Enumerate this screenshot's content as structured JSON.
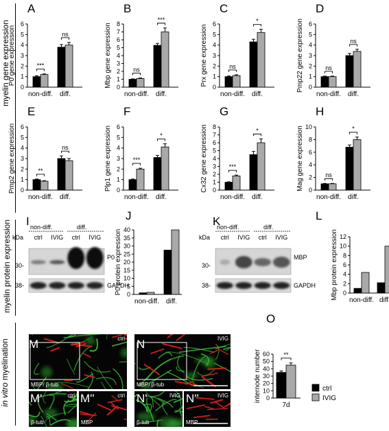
{
  "section_labels": {
    "myelin_gene": "myelin gene expression",
    "myelin_protein": "myelin protein expression",
    "in_vitro_prefix": "in vitro",
    "in_vitro_suffix": " myelination"
  },
  "colors": {
    "ctrl": "#000000",
    "ivig": "#a9a9a9"
  },
  "chart_data": [
    {
      "panel": "A",
      "type": "bar",
      "ylabel": "P0 gene expression",
      "categories": [
        "non-diff.",
        "diff."
      ],
      "ylim": [
        0,
        6
      ],
      "yticks": [
        0,
        1,
        2,
        3,
        4,
        5,
        6
      ],
      "series": [
        {
          "name": "ctrl",
          "values": [
            1.0,
            3.8
          ],
          "err": [
            0.08,
            0.25
          ]
        },
        {
          "name": "IVIG",
          "values": [
            1.2,
            4.0
          ],
          "err": [
            0.06,
            0.25
          ]
        }
      ],
      "sig": [
        "***",
        "ns"
      ]
    },
    {
      "panel": "B",
      "type": "bar",
      "ylabel": "Mbp gene expression",
      "categories": [
        "non-diff.",
        "diff."
      ],
      "ylim": [
        0,
        8
      ],
      "yticks": [
        0,
        1,
        2,
        3,
        4,
        5,
        6,
        7,
        8
      ],
      "series": [
        {
          "name": "ctrl",
          "values": [
            1.0,
            5.3
          ],
          "err": [
            0.05,
            0.25
          ]
        },
        {
          "name": "IVIG",
          "values": [
            1.1,
            7.0
          ],
          "err": [
            0.07,
            0.5
          ]
        }
      ],
      "sig": [
        "ns",
        "***"
      ]
    },
    {
      "panel": "C",
      "type": "bar",
      "ylabel": "Prx gene expression",
      "categories": [
        "non-diff.",
        "diff."
      ],
      "ylim": [
        0,
        6
      ],
      "yticks": [
        0,
        1,
        2,
        3,
        4,
        5,
        6
      ],
      "series": [
        {
          "name": "ctrl",
          "values": [
            1.0,
            4.3
          ],
          "err": [
            0.06,
            0.25
          ]
        },
        {
          "name": "IVIG",
          "values": [
            1.1,
            5.2
          ],
          "err": [
            0.08,
            0.3
          ]
        }
      ],
      "sig": [
        "ns",
        "*"
      ]
    },
    {
      "panel": "D",
      "type": "bar",
      "ylabel": "Pmp22 gene expression",
      "categories": [
        "non-diff.",
        "diff."
      ],
      "ylim": [
        0,
        6
      ],
      "yticks": [
        0,
        1,
        2,
        3,
        4,
        5,
        6
      ],
      "series": [
        {
          "name": "ctrl",
          "values": [
            1.0,
            3.0
          ],
          "err": [
            0.05,
            0.2
          ]
        },
        {
          "name": "IVIG",
          "values": [
            1.0,
            3.4
          ],
          "err": [
            0.05,
            0.2
          ]
        }
      ],
      "sig": [
        "ns",
        "ns"
      ]
    },
    {
      "panel": "E",
      "type": "bar",
      "ylabel": "Pmp2 gene expression",
      "categories": [
        "non-diff.",
        "diff."
      ],
      "ylim": [
        0,
        6
      ],
      "yticks": [
        0,
        1,
        2,
        3,
        4,
        5,
        6
      ],
      "series": [
        {
          "name": "ctrl",
          "values": [
            1.0,
            3.0
          ],
          "err": [
            0.05,
            0.25
          ]
        },
        {
          "name": "IVIG",
          "values": [
            0.85,
            2.8
          ],
          "err": [
            0.05,
            0.2
          ]
        }
      ],
      "sig": [
        "**",
        "ns"
      ]
    },
    {
      "panel": "F",
      "type": "bar",
      "ylabel": "Plp1 gene expression",
      "categories": [
        "non-diff.",
        "diff."
      ],
      "ylim": [
        0,
        6
      ],
      "yticks": [
        0,
        1,
        2,
        3,
        4,
        5,
        6
      ],
      "series": [
        {
          "name": "ctrl",
          "values": [
            1.0,
            3.1
          ],
          "err": [
            0.05,
            0.2
          ]
        },
        {
          "name": "IVIG",
          "values": [
            2.0,
            4.1
          ],
          "err": [
            0.08,
            0.3
          ]
        }
      ],
      "sig": [
        "***",
        "*"
      ]
    },
    {
      "panel": "G",
      "type": "bar",
      "ylabel": "Cx32 gene expression",
      "categories": [
        "non-diff.",
        "diff."
      ],
      "ylim": [
        0,
        8
      ],
      "yticks": [
        0,
        1,
        2,
        3,
        4,
        5,
        6,
        7,
        8
      ],
      "series": [
        {
          "name": "ctrl",
          "values": [
            1.0,
            4.5
          ],
          "err": [
            0.05,
            0.4
          ]
        },
        {
          "name": "IVIG",
          "values": [
            1.8,
            6.0
          ],
          "err": [
            0.1,
            0.5
          ]
        }
      ],
      "sig": [
        "***",
        "*"
      ]
    },
    {
      "panel": "H",
      "type": "bar",
      "ylabel": "Mag gene expression",
      "categories": [
        "non-diff.",
        "diff."
      ],
      "ylim": [
        0,
        10
      ],
      "yticks": [
        0,
        2,
        4,
        6,
        8,
        10
      ],
      "series": [
        {
          "name": "ctrl",
          "values": [
            1.0,
            6.8
          ],
          "err": [
            0.06,
            0.35
          ]
        },
        {
          "name": "IVIG",
          "values": [
            1.0,
            8.0
          ],
          "err": [
            0.06,
            0.4
          ]
        }
      ],
      "sig": [
        "ns",
        "*"
      ]
    },
    {
      "panel": "J",
      "type": "bar",
      "ylabel": "P0 protein expression",
      "categories": [
        "non-diff.",
        "diff."
      ],
      "ylim": [
        0,
        40
      ],
      "yticks": [
        0,
        5,
        10,
        15,
        20,
        25,
        30,
        35,
        40
      ],
      "series": [
        {
          "name": "ctrl",
          "values": [
            1.0,
            27.5
          ]
        },
        {
          "name": "IVIG",
          "values": [
            1.3,
            40.0
          ]
        }
      ],
      "sig": []
    },
    {
      "panel": "L",
      "type": "bar",
      "ylabel": "Mbp protein expression",
      "categories": [
        "non-diff.",
        "diff."
      ],
      "ylim": [
        0,
        12
      ],
      "yticks": [
        0,
        2,
        4,
        6,
        8,
        10,
        12
      ],
      "series": [
        {
          "name": "ctrl",
          "values": [
            1.0,
            2.2
          ]
        },
        {
          "name": "IVIG",
          "values": [
            4.4,
            10.0
          ]
        }
      ],
      "sig": []
    },
    {
      "panel": "O",
      "type": "bar",
      "ylabel": "internode number",
      "categories": [
        "7d"
      ],
      "ylim": [
        0,
        60
      ],
      "yticks": [
        0,
        10,
        20,
        30,
        40,
        50,
        60
      ],
      "series": [
        {
          "name": "ctrl",
          "values": [
            35
          ],
          "err": [
            2
          ]
        },
        {
          "name": "IVIG",
          "values": [
            45
          ],
          "err": [
            3
          ]
        }
      ],
      "sig": [
        "**"
      ]
    }
  ],
  "legend": [
    {
      "label": "ctrl",
      "color": "#000000"
    },
    {
      "label": "IVIG",
      "color": "#a9a9a9"
    }
  ],
  "blots": [
    {
      "panel": "I",
      "header_left": "non-diff.",
      "header_right": "diff.",
      "lanes": [
        "ctrl",
        "IVIG",
        "ctrl",
        "IVIG"
      ],
      "kda": "kDa",
      "markers": [
        "30-",
        "38-"
      ],
      "bands": [
        "P0",
        "GAPDH"
      ]
    },
    {
      "panel": "K",
      "header_left": "non-diff.",
      "header_right": "diff.",
      "lanes": [
        "ctrl",
        "IVIG",
        "ctrl",
        "IVIG"
      ],
      "kda": "kDa",
      "markers": [
        "30-",
        "38-"
      ],
      "bands": [
        "MBP",
        "GAPDH"
      ]
    }
  ],
  "micrographs": [
    {
      "panel": "M",
      "corner": "ctrl",
      "caption": "MBP/ β-tub"
    },
    {
      "panel": "N",
      "corner": "IVIG",
      "caption": "MBP/ β-tub"
    },
    {
      "panel": "M'",
      "corner": "ctrl",
      "caption": "β-tub"
    },
    {
      "panel": "M''",
      "corner": "ctrl",
      "caption": "MBP"
    },
    {
      "panel": "N'",
      "corner": "IVIG",
      "caption": "β-tub"
    },
    {
      "panel": "N''",
      "corner": "IVIG",
      "caption": "MBP"
    }
  ]
}
